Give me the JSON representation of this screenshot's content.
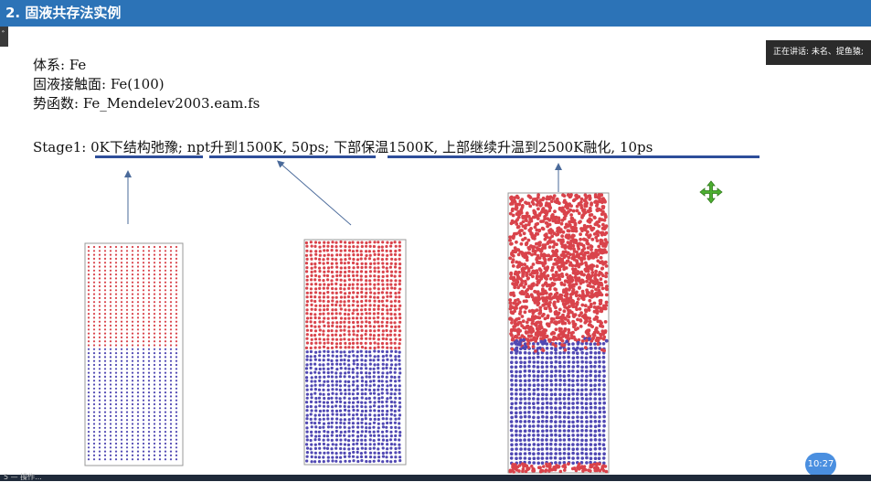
{
  "slide": {
    "title": "2. 固液共存法实例",
    "system": "体系: Fe",
    "interface": "固液接触面: Fe(100)",
    "potential": "势函数: Fe_Mendelev2003.eam.fs",
    "stage_prefix": "Stage1: ",
    "step1": "0K下结构弛豫",
    "sep1": "; ",
    "step2": "npt升到1500K, 50ps",
    "sep2": "; ",
    "step3": "下部保温1500K, 上部继续升温到2500K融化, 10ps"
  },
  "overlay": {
    "speaker_text": "正在讲话: 未名、提鱼猿;",
    "clock": "10:27",
    "left_tab": "ﾞ",
    "bottom_text": "5 — 操作..."
  },
  "colors": {
    "title_bg": "#2c73b7",
    "liquid_atoms": "#d9434b",
    "solid_atoms": "#5048b3",
    "underline": "#2e4e9a",
    "move_icon": "#4caf30"
  },
  "icons": [
    "move-cursor-icon"
  ]
}
